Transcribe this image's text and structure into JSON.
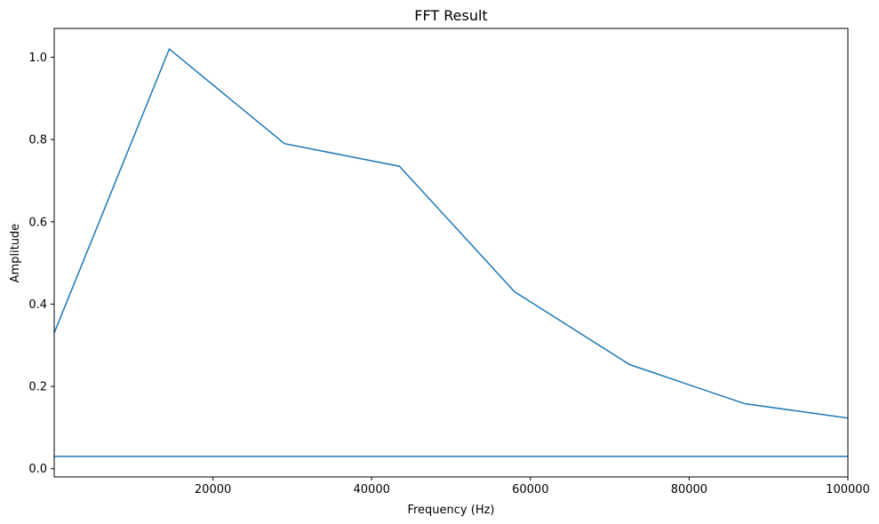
{
  "chart_data": {
    "type": "line",
    "title": "FFT Result",
    "xlabel": "Frequency (Hz)",
    "ylabel": "Amplitude",
    "xlim": [
      0,
      100000
    ],
    "ylim": [
      -0.02,
      1.07
    ],
    "grid": false,
    "xticks": [
      20000,
      40000,
      60000,
      80000,
      100000
    ],
    "xtick_labels": [
      "20000",
      "40000",
      "60000",
      "80000",
      "100000"
    ],
    "yticks": [
      0.0,
      0.2,
      0.4,
      0.6,
      0.8,
      1.0
    ],
    "ytick_labels": [
      "0.0",
      "0.2",
      "0.4",
      "0.6",
      "0.8",
      "1.0"
    ],
    "color": "#1f77b4",
    "series": [
      {
        "x": [
          0,
          14500,
          29000,
          43500,
          58000,
          72500,
          87000,
          100000
        ],
        "y": [
          0.33,
          1.02,
          0.79,
          0.735,
          0.43,
          0.253,
          0.158,
          0.123
        ]
      },
      {
        "x": [
          0,
          100000
        ],
        "y": [
          0.03,
          0.03
        ]
      }
    ]
  }
}
